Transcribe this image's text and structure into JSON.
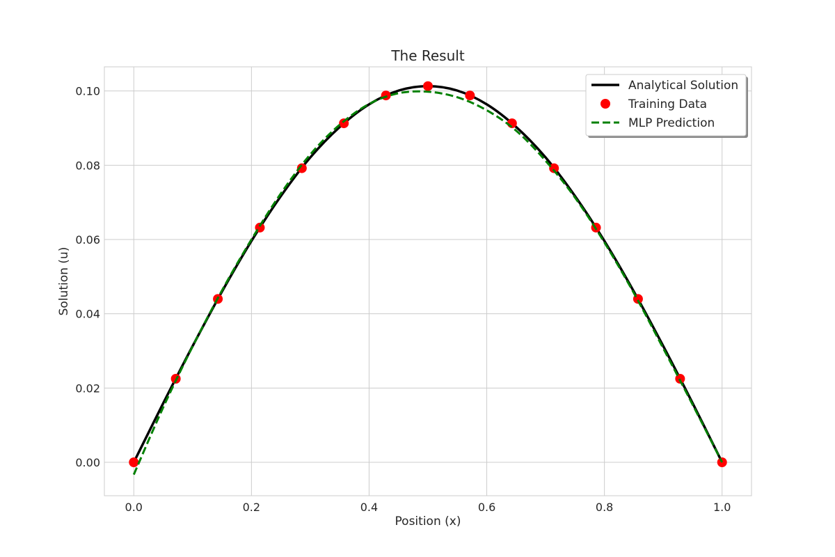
{
  "chart_data": {
    "type": "line",
    "title": "The Result",
    "xlabel": "Position (x)",
    "ylabel": "Solution (u)",
    "xlim": [
      -0.05,
      1.05
    ],
    "ylim": [
      -0.009,
      0.1065
    ],
    "xticks": [
      0.0,
      0.2,
      0.4,
      0.6,
      0.8,
      1.0
    ],
    "xtick_labels": [
      "0.0",
      "0.2",
      "0.4",
      "0.6",
      "0.8",
      "1.0"
    ],
    "yticks": [
      0.0,
      0.02,
      0.04,
      0.06,
      0.08,
      0.1
    ],
    "ytick_labels": [
      "0.00",
      "0.02",
      "0.04",
      "0.06",
      "0.08",
      "0.10"
    ],
    "grid": true,
    "legend_position": "top-right",
    "series": [
      {
        "name": "Analytical Solution",
        "kind": "line",
        "style": "solid",
        "color": "#000000",
        "x": [
          0.0,
          0.05,
          0.1,
          0.15,
          0.2,
          0.25,
          0.3,
          0.35,
          0.4,
          0.45,
          0.5,
          0.55,
          0.6,
          0.65,
          0.7,
          0.75,
          0.8,
          0.85,
          0.9,
          0.95,
          1.0
        ],
        "y": [
          0.0,
          0.0159,
          0.0313,
          0.046,
          0.0596,
          0.0717,
          0.0821,
          0.0903,
          0.0964,
          0.1001,
          0.1013,
          0.1001,
          0.0964,
          0.0903,
          0.0821,
          0.0717,
          0.0596,
          0.046,
          0.0313,
          0.0159,
          0.0
        ]
      },
      {
        "name": "Training Data",
        "kind": "scatter",
        "color": "#ff0000",
        "x": [
          0.0,
          0.0714,
          0.1429,
          0.2143,
          0.2857,
          0.3571,
          0.4286,
          0.5,
          0.5714,
          0.6429,
          0.7143,
          0.7857,
          0.8571,
          0.9286,
          1.0
        ],
        "y": [
          0.0,
          0.0225,
          0.044,
          0.0632,
          0.0792,
          0.0913,
          0.0988,
          0.1013,
          0.0988,
          0.0913,
          0.0792,
          0.0632,
          0.044,
          0.0225,
          0.0
        ]
      },
      {
        "name": "MLP Prediction",
        "kind": "line",
        "style": "dashed",
        "color": "#008000",
        "x": [
          0.0,
          0.05,
          0.1,
          0.15,
          0.2,
          0.25,
          0.3,
          0.35,
          0.4,
          0.45,
          0.5,
          0.55,
          0.6,
          0.65,
          0.7,
          0.75,
          0.8,
          0.85,
          0.9,
          0.95,
          1.0
        ],
        "y": [
          -0.0033,
          0.0148,
          0.0312,
          0.0463,
          0.06,
          0.0724,
          0.0829,
          0.0909,
          0.0965,
          0.0994,
          0.0998,
          0.0983,
          0.0948,
          0.0893,
          0.0812,
          0.0713,
          0.0592,
          0.0456,
          0.0307,
          0.0155,
          0.0
        ]
      }
    ]
  }
}
